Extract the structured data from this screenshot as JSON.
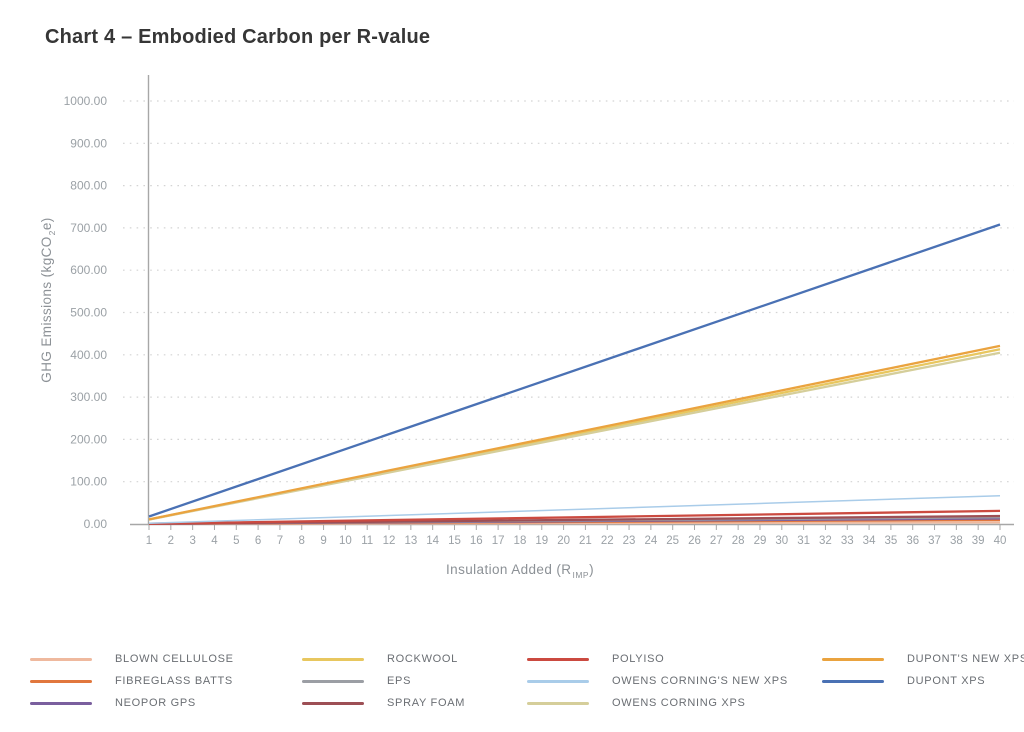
{
  "chart_data": {
    "type": "line",
    "title": "Chart 4 – Embodied Carbon per R-value",
    "xlabel": {
      "prefix": "Insulation Added (R",
      "sub": "IMP",
      "suffix": ")"
    },
    "ylabel": {
      "prefix": "GHG Emissions (kgCO",
      "sub": "2",
      "suffix": "e)"
    },
    "line_shape": "linear",
    "x": [
      1,
      40
    ],
    "x_tick_labels": [
      "1",
      "2",
      "3",
      "4",
      "5",
      "6",
      "7",
      "8",
      "9",
      "10",
      "11",
      "12",
      "13",
      "14",
      "15",
      "16",
      "17",
      "18",
      "19",
      "20",
      "21",
      "22",
      "23",
      "24",
      "25",
      "26",
      "27",
      "28",
      "29",
      "30",
      "31",
      "32",
      "33",
      "34",
      "35",
      "36",
      "37",
      "38",
      "39",
      "40"
    ],
    "y_tick_labels": [
      "0.00",
      "100.00",
      "200.00",
      "300.00",
      "400.00",
      "500.00",
      "600.00",
      "700.00",
      "800.00",
      "900.00",
      "1000.00"
    ],
    "ylim": [
      0,
      1000
    ],
    "grid": "horizontal dotted",
    "series": [
      {
        "name": "BLOWN CELLULOSE",
        "color": "#efb99e",
        "values": [
          0.2,
          4
        ]
      },
      {
        "name": "FIBREGLASS BATTS",
        "color": "#e1773d",
        "values": [
          0.3,
          10
        ]
      },
      {
        "name": "NEOPOR GPS",
        "color": "#7a5f9e",
        "values": [
          0.4,
          13
        ]
      },
      {
        "name": "ROCKWOOL",
        "color": "#e8c75f",
        "values": [
          10.6,
          413
        ]
      },
      {
        "name": "EPS",
        "color": "#9b9ea4",
        "values": [
          0.4,
          16
        ]
      },
      {
        "name": "SPRAY FOAM",
        "color": "#9d4f55",
        "values": [
          0.5,
          19
        ]
      },
      {
        "name": "POLYISO",
        "color": "#cb4a40",
        "values": [
          0.8,
          31
        ]
      },
      {
        "name": "OWENS CORNING'S NEW XPS",
        "color": "#a9cce9",
        "values": [
          1.7,
          67
        ]
      },
      {
        "name": "OWENS CORNING XPS",
        "color": "#d5ce9a",
        "values": [
          10.4,
          405
        ]
      },
      {
        "name": "DUPONT'S NEW XPS",
        "color": "#eaa33f",
        "values": [
          10.8,
          421
        ]
      },
      {
        "name": "DUPONT XPS",
        "color": "#4a71b4",
        "values": [
          17.8,
          708
        ]
      }
    ],
    "legend": {
      "position": "bottom",
      "columns": [
        [
          0,
          1,
          2
        ],
        [
          3,
          4,
          5
        ],
        [
          6,
          7,
          8
        ],
        [
          9,
          10
        ]
      ]
    }
  }
}
